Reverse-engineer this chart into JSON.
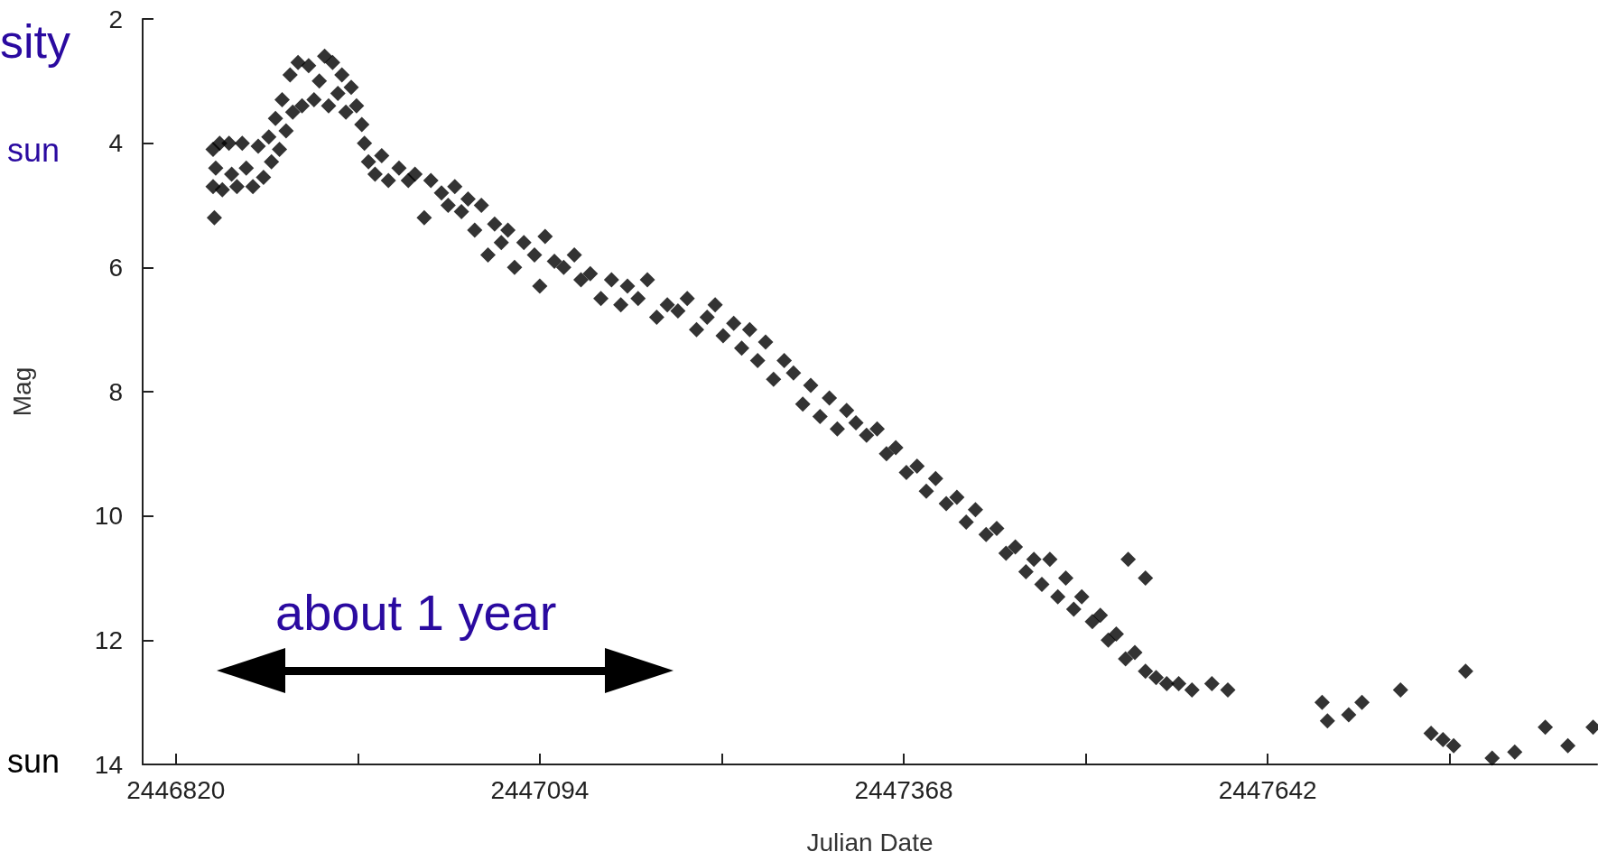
{
  "chart_data": {
    "type": "scatter",
    "xlabel": "Julian Date",
    "ylabel": "Mag",
    "annotations": [
      "sity",
      "sun",
      "sun",
      "about 1 year"
    ],
    "xlim": [
      2446795,
      2447890
    ],
    "xticks": [
      2446820,
      {
        "value": 2446957,
        "label": null
      },
      2447094,
      {
        "value": 2447231,
        "label": null
      },
      2447368,
      {
        "value": 2447505,
        "label": null
      },
      2447642,
      {
        "value": 2447779,
        "label": null
      }
    ],
    "ylim": [
      14,
      2
    ],
    "yticks": [
      2,
      4,
      6,
      8,
      10,
      12,
      14
    ],
    "marker": "diamond",
    "grid": false,
    "series": [
      {
        "color": "#000000",
        "x": [
          2446848,
          2446848,
          2446849,
          2446850,
          2446853,
          2446855,
          2446860,
          2446862,
          2446866,
          2446870,
          2446873,
          2446878,
          2446882,
          2446886,
          2446890,
          2446892,
          2446895,
          2446898,
          2446900,
          2446903,
          2446906,
          2446908,
          2446912,
          2446915,
          2446920,
          2446924,
          2446928,
          2446932,
          2446935,
          2446938,
          2446942,
          2446945,
          2446948,
          2446952,
          2446956,
          2446960,
          2446962,
          2446965,
          2446970,
          2446975,
          2446980,
          2446988,
          2446995,
          2447000,
          2447007,
          2447012,
          2447020,
          2447025,
          2447030,
          2447035,
          2447040,
          2447045,
          2447050,
          2447055,
          2447060,
          2447065,
          2447070,
          2447075,
          2447082,
          2447090,
          2447094,
          2447098,
          2447105,
          2447112,
          2447120,
          2447125,
          2447132,
          2447140,
          2447148,
          2447155,
          2447160,
          2447168,
          2447175,
          2447182,
          2447190,
          2447198,
          2447205,
          2447212,
          2447220,
          2447226,
          2447232,
          2447240,
          2447246,
          2447252,
          2447258,
          2447264,
          2447270,
          2447278,
          2447285,
          2447292,
          2447298,
          2447305,
          2447312,
          2447318,
          2447325,
          2447332,
          2447340,
          2447348,
          2447355,
          2447362,
          2447370,
          2447378,
          2447385,
          2447392,
          2447400,
          2447408,
          2447415,
          2447422,
          2447430,
          2447438,
          2447445,
          2447452,
          2447460,
          2447466,
          2447472,
          2447478,
          2447484,
          2447490,
          2447496,
          2447502,
          2447510,
          2447516,
          2447522,
          2447528,
          2447535,
          2447537,
          2447542,
          2447550,
          2447550,
          2447558,
          2447566,
          2447575,
          2447585,
          2447600,
          2447612,
          2447683,
          2447687,
          2447703,
          2447713,
          2447742,
          2447765,
          2447774,
          2447782,
          2447791,
          2447811,
          2447828,
          2447851,
          2447868,
          2447887
        ],
        "values": [
          4.1,
          4.7,
          5.2,
          4.4,
          4.0,
          4.75,
          4.0,
          4.5,
          4.7,
          4.0,
          4.4,
          4.7,
          4.05,
          4.55,
          3.9,
          4.3,
          3.6,
          4.1,
          3.3,
          3.8,
          2.9,
          3.5,
          2.7,
          3.4,
          2.75,
          3.3,
          3.0,
          2.6,
          3.4,
          2.7,
          3.2,
          2.9,
          3.5,
          3.1,
          3.4,
          3.7,
          4.0,
          4.3,
          4.5,
          4.2,
          4.6,
          4.4,
          4.6,
          4.5,
          5.2,
          4.6,
          4.8,
          5.0,
          4.7,
          5.1,
          4.9,
          5.4,
          5.0,
          5.8,
          5.3,
          5.6,
          5.4,
          6.0,
          5.6,
          5.8,
          6.3,
          5.5,
          5.9,
          6.0,
          5.8,
          6.2,
          6.1,
          6.5,
          6.2,
          6.6,
          6.3,
          6.5,
          6.2,
          6.8,
          6.6,
          6.7,
          6.5,
          7.0,
          6.8,
          6.6,
          7.1,
          6.9,
          7.3,
          7.0,
          7.5,
          7.2,
          7.8,
          7.5,
          7.7,
          8.2,
          7.9,
          8.4,
          8.1,
          8.6,
          8.3,
          8.5,
          8.7,
          8.6,
          9.0,
          8.9,
          9.3,
          9.2,
          9.6,
          9.4,
          9.8,
          9.7,
          10.1,
          9.9,
          10.3,
          10.2,
          10.6,
          10.5,
          10.9,
          10.7,
          11.1,
          10.7,
          11.3,
          11.0,
          11.5,
          11.3,
          11.7,
          11.6,
          12.0,
          11.9,
          12.3,
          10.7,
          12.2,
          12.5,
          11.0,
          12.6,
          12.7,
          12.7,
          12.8,
          12.7,
          12.8,
          13.0,
          13.3,
          13.2,
          13.0,
          12.8,
          13.5,
          13.6,
          13.7,
          12.5,
          13.9,
          13.8,
          13.4,
          13.7,
          13.4
        ]
      }
    ]
  }
}
